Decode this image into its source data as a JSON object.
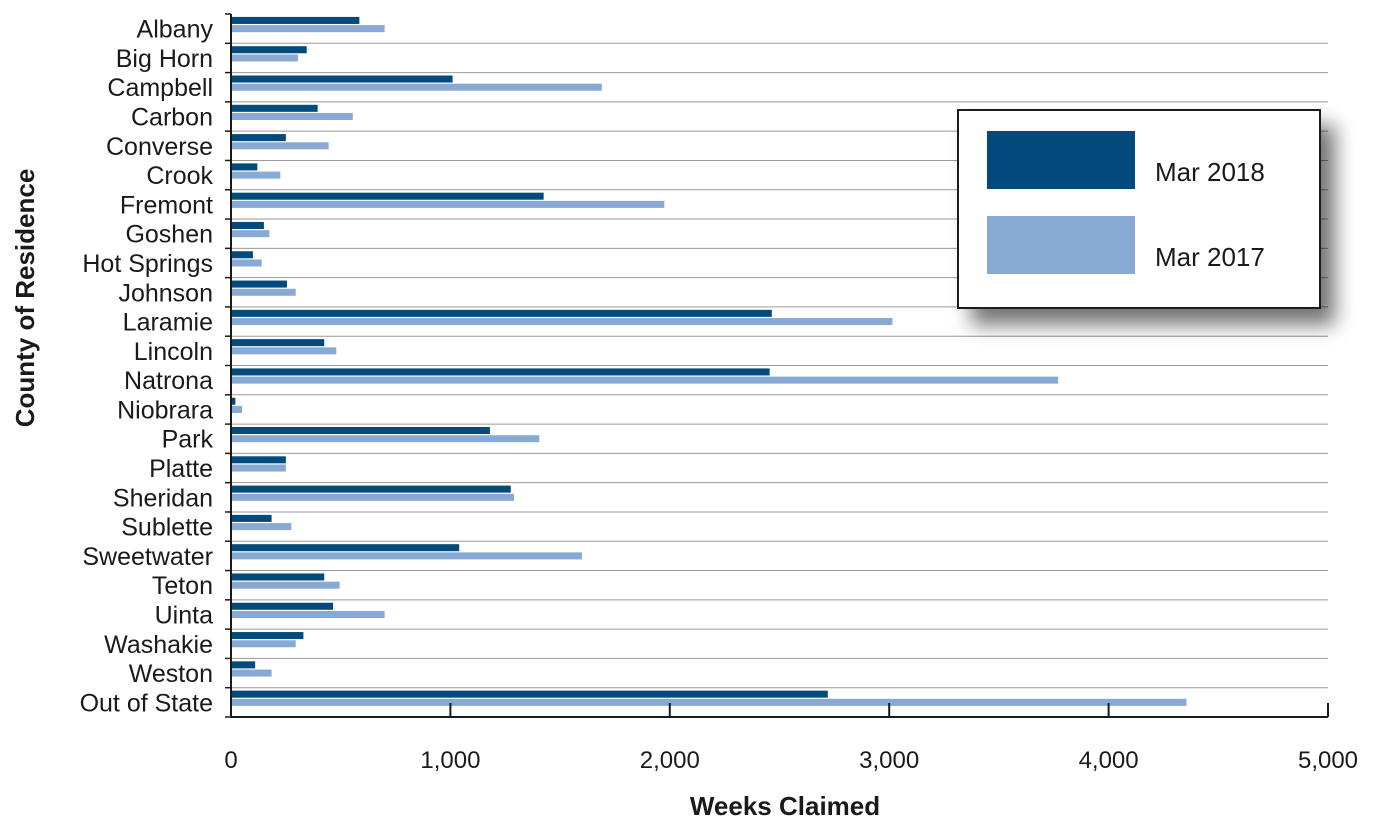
{
  "chart_data": {
    "type": "bar",
    "orientation": "horizontal",
    "xlabel": "Weeks Claimed",
    "ylabel": "County of Residence",
    "xlim": [
      0,
      5000
    ],
    "xticks": [
      0,
      1000,
      2000,
      3000,
      4000,
      5000
    ],
    "xtick_labels": [
      "0",
      "1,000",
      "2,000",
      "3,000",
      "4,000",
      "5,000"
    ],
    "grid": "horizontal",
    "legend_position": "top-right",
    "categories": [
      "Albany",
      "Big Horn",
      "Campbell",
      "Carbon",
      "Converse",
      "Crook",
      "Fremont",
      "Goshen",
      "Hot Springs",
      "Johnson",
      "Laramie",
      "Lincoln",
      "Natrona",
      "Niobrara",
      "Park",
      "Platte",
      "Sheridan",
      "Sublette",
      "Sweetwater",
      "Teton",
      "Uinta",
      "Washakie",
      "Weston",
      "Out of State"
    ],
    "series": [
      {
        "name": "Mar 2018",
        "color": "#004b7c",
        "values": [
          585,
          345,
          1010,
          395,
          250,
          120,
          1425,
          150,
          100,
          255,
          2465,
          425,
          2455,
          20,
          1180,
          250,
          1275,
          185,
          1040,
          425,
          465,
          330,
          110,
          2720
        ]
      },
      {
        "name": "Mar 2017",
        "color": "#87a9d4",
        "values": [
          700,
          305,
          1690,
          555,
          445,
          225,
          1975,
          175,
          140,
          295,
          3015,
          480,
          3770,
          50,
          1405,
          250,
          1290,
          275,
          1600,
          495,
          700,
          295,
          185,
          4355
        ]
      }
    ]
  }
}
